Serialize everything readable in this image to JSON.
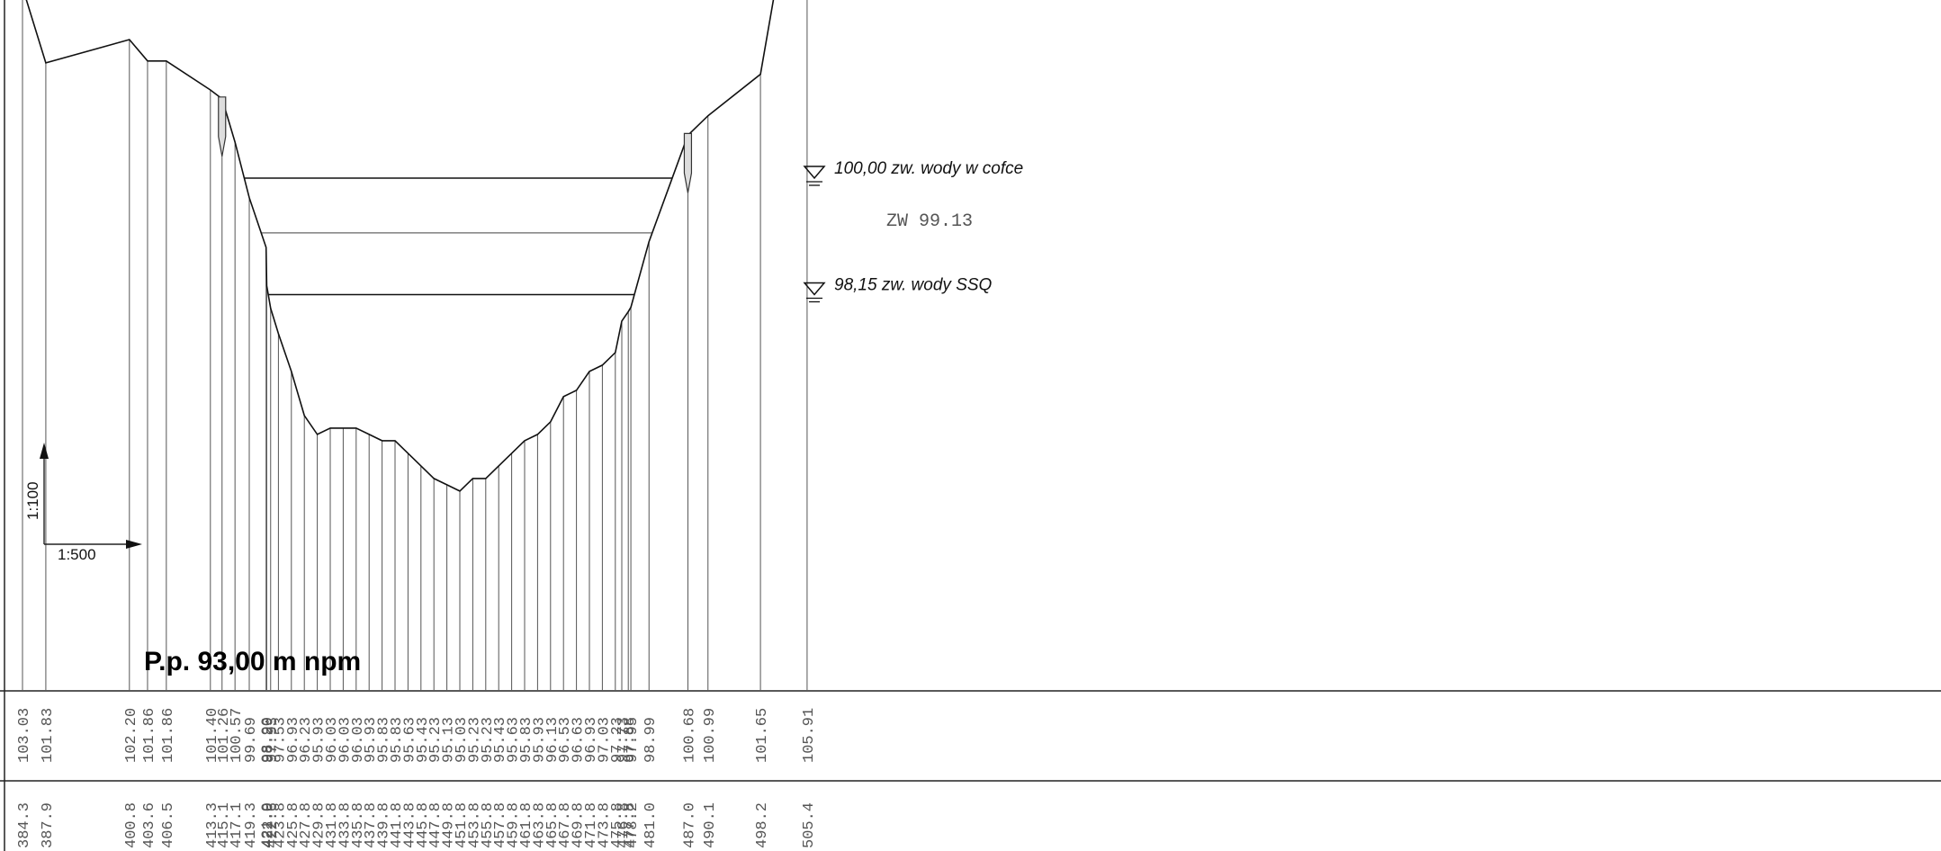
{
  "profile": {
    "datum_label": "P.p. 93,00 m npm",
    "scale": {
      "vertical": "1:100",
      "horizontal": "1:500"
    },
    "points": [
      {
        "dist": "384.3",
        "elev": "103.03"
      },
      {
        "dist": "387.9",
        "elev": "101.83"
      },
      {
        "dist": "400.8",
        "elev": "102.20"
      },
      {
        "dist": "403.6",
        "elev": "101.86"
      },
      {
        "dist": "406.5",
        "elev": "101.86"
      },
      {
        "dist": "413.3",
        "elev": "101.40"
      },
      {
        "dist": "415.1",
        "elev": "101.26"
      },
      {
        "dist": "417.1",
        "elev": "100.57"
      },
      {
        "dist": "419.3",
        "elev": "99.69"
      },
      {
        "dist": "421.9",
        "elev": "98.90"
      },
      {
        "dist": "422.0",
        "elev": "98.29"
      },
      {
        "dist": "422.6",
        "elev": "97.93"
      },
      {
        "dist": "423.8",
        "elev": "97.53"
      },
      {
        "dist": "425.8",
        "elev": "96.93"
      },
      {
        "dist": "427.8",
        "elev": "96.23"
      },
      {
        "dist": "429.8",
        "elev": "95.93"
      },
      {
        "dist": "431.8",
        "elev": "96.03"
      },
      {
        "dist": "433.8",
        "elev": "96.03"
      },
      {
        "dist": "435.8",
        "elev": "96.03"
      },
      {
        "dist": "437.8",
        "elev": "95.93"
      },
      {
        "dist": "439.8",
        "elev": "95.83"
      },
      {
        "dist": "441.8",
        "elev": "95.83"
      },
      {
        "dist": "443.8",
        "elev": "95.63"
      },
      {
        "dist": "445.8",
        "elev": "95.43"
      },
      {
        "dist": "447.8",
        "elev": "95.23"
      },
      {
        "dist": "449.8",
        "elev": "95.13"
      },
      {
        "dist": "451.8",
        "elev": "95.03"
      },
      {
        "dist": "453.8",
        "elev": "95.23"
      },
      {
        "dist": "455.8",
        "elev": "95.23"
      },
      {
        "dist": "457.8",
        "elev": "95.43"
      },
      {
        "dist": "459.8",
        "elev": "95.63"
      },
      {
        "dist": "461.8",
        "elev": "95.83"
      },
      {
        "dist": "463.8",
        "elev": "95.93"
      },
      {
        "dist": "465.8",
        "elev": "96.13"
      },
      {
        "dist": "467.8",
        "elev": "96.53"
      },
      {
        "dist": "469.8",
        "elev": "96.63"
      },
      {
        "dist": "471.8",
        "elev": "96.93"
      },
      {
        "dist": "473.8",
        "elev": "97.03"
      },
      {
        "dist": "475.8",
        "elev": "97.23"
      },
      {
        "dist": "476.8",
        "elev": "97.73"
      },
      {
        "dist": "477.8",
        "elev": "97.88"
      },
      {
        "dist": "478.2",
        "elev": "97.95"
      },
      {
        "dist": "481.0",
        "elev": "98.99"
      },
      {
        "dist": "487.0",
        "elev": "100.68"
      },
      {
        "dist": "490.1",
        "elev": "100.99"
      },
      {
        "dist": "498.2",
        "elev": "101.65"
      },
      {
        "dist": "505.4",
        "elev": "105.91"
      }
    ],
    "water_levels": [
      {
        "label": "100,00 zw. wody w cofce",
        "elev": 100.0
      },
      {
        "label": "ZW  99.13",
        "elev": 99.13
      },
      {
        "label": "98,15 zw. wody  SSQ",
        "elev": 98.15
      }
    ]
  }
}
